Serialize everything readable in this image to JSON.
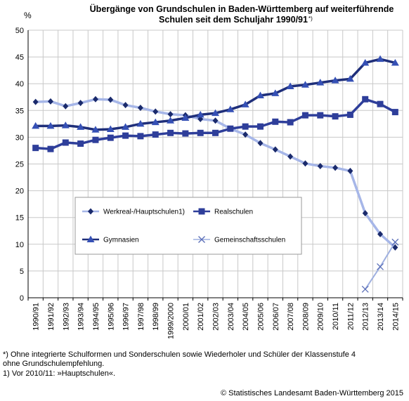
{
  "chart_data": {
    "type": "line",
    "title_lines": [
      "Übergänge von Grundschulen in Baden-Württemberg auf weiterführende",
      "Schulen seit dem Schuljahr 1990/91"
    ],
    "title_mark": "*)",
    "ylabel": "%",
    "xlabel": "",
    "ylim": [
      0,
      50
    ],
    "yticks": [
      "0",
      "5",
      "10",
      "15",
      "20",
      "25",
      "30",
      "35",
      "40",
      "45",
      "50"
    ],
    "grid": true,
    "legend_position": "center-left",
    "categories": [
      "1990/91",
      "1991/92",
      "1992/93",
      "1993/94",
      "1994/95",
      "1995/96",
      "1996/97",
      "1997/98",
      "1998/99",
      "1999/2000",
      "2000/01",
      "2001/02",
      "2002/03",
      "2003/04",
      "2004/05",
      "2005/06",
      "2006/07",
      "2007/08",
      "2008/09",
      "2009/10",
      "2010/11",
      "2011/12",
      "2012/13",
      "2013/14",
      "2014/15"
    ],
    "series": [
      {
        "name": "Werkreal-/Hauptschulen1)",
        "color": "#a6b6e8",
        "marker_color": "#1a2a6c",
        "marker": "diamond",
        "values": [
          36.6,
          36.7,
          35.8,
          36.4,
          37.1,
          37.0,
          36.0,
          35.5,
          34.8,
          34.3,
          34.1,
          33.4,
          33.1,
          31.6,
          30.5,
          28.9,
          27.7,
          26.4,
          25.1,
          24.6,
          24.3,
          23.7,
          15.8,
          11.9,
          9.4
        ]
      },
      {
        "name": "Realschulen",
        "color": "#2e3e9a",
        "marker_color": "#2e3e9a",
        "marker": "square",
        "values": [
          28.0,
          27.8,
          29.0,
          28.8,
          29.5,
          29.9,
          30.3,
          30.2,
          30.5,
          30.8,
          30.7,
          30.8,
          30.8,
          31.6,
          32.0,
          32.0,
          32.9,
          32.8,
          34.1,
          34.1,
          33.9,
          34.2,
          37.1,
          36.2,
          34.7
        ]
      },
      {
        "name": "Gymnasien",
        "color": "#1f2f7a",
        "marker_color": "#3550b5",
        "marker": "triangle",
        "values": [
          32.1,
          32.1,
          32.2,
          31.9,
          31.4,
          31.5,
          31.9,
          32.5,
          32.8,
          33.1,
          33.6,
          34.2,
          34.5,
          35.2,
          36.1,
          37.8,
          38.2,
          39.5,
          39.8,
          40.2,
          40.6,
          40.9,
          43.9,
          44.6,
          43.9
        ]
      },
      {
        "name": "Gemeinschaftsschulen",
        "color": "#9fb0e0",
        "marker_color": "#5b6fb8",
        "marker": "x",
        "values": [
          null,
          null,
          null,
          null,
          null,
          null,
          null,
          null,
          null,
          null,
          null,
          null,
          null,
          null,
          null,
          null,
          null,
          null,
          null,
          null,
          null,
          null,
          1.6,
          5.8,
          10.4
        ]
      }
    ]
  },
  "footnotes": {
    "line1": "*) Ohne integrierte Schulformen und Sonderschulen sowie Wiederholer und Schüler der Klassenstufe 4",
    "line2": "ohne Grundschulempfehlung.",
    "line3": "1) Vor 2010/11: »Hauptschulen«."
  },
  "copyright": "© Statistisches Landesamt Baden-Württemberg 2015"
}
